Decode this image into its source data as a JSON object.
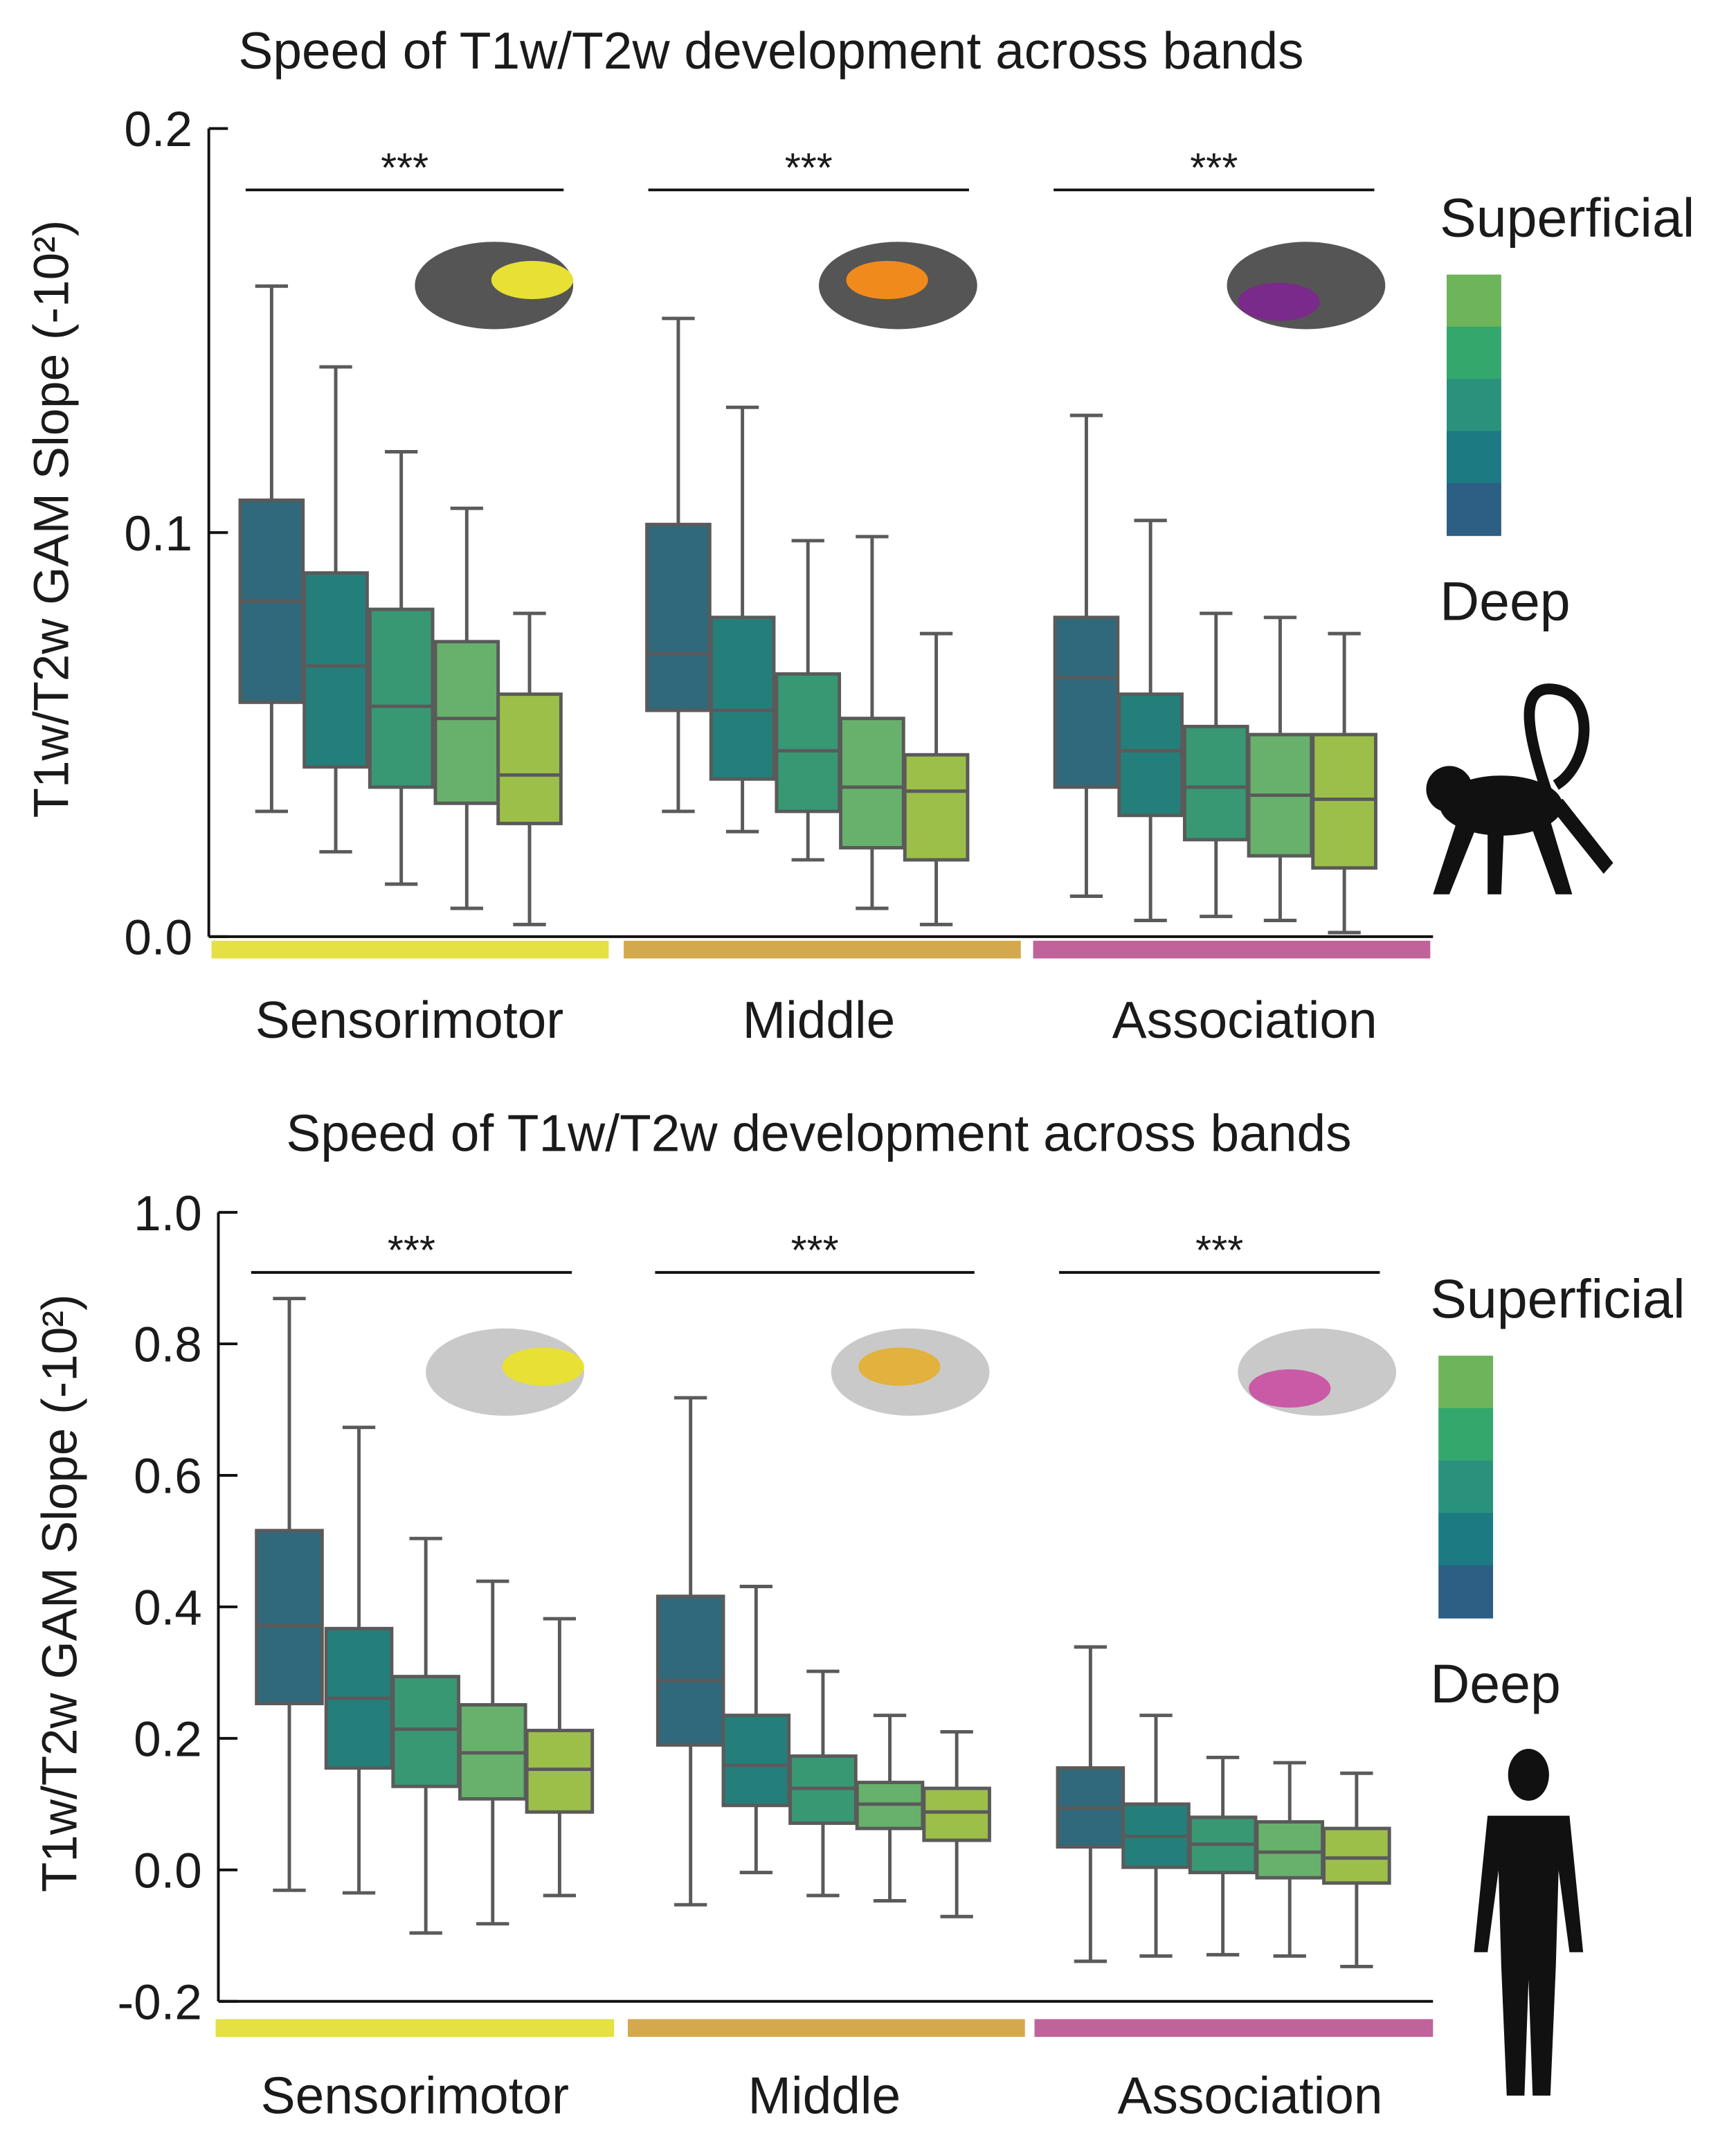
{
  "legend": {
    "top_label": "Superficial",
    "bottom_label": "Deep",
    "colors": [
      "#6db45a",
      "#34a86c",
      "#2a927c",
      "#1c7a82",
      "#2d5f84"
    ]
  },
  "box_colors": [
    "#30697b",
    "#247f7b",
    "#389874",
    "#68b16c",
    "#9cbf4a"
  ],
  "band_colors": {
    "Sensorimotor": "#e5e043",
    "Middle": "#d4a94e",
    "Association": "#c0639a"
  },
  "significance": "***",
  "chart_data": [
    {
      "type": "box",
      "title": "Speed of T1w/T2w development across bands",
      "ylabel": "T1w/T2w GAM Slope (-10²)",
      "ylim": [
        0,
        0.2
      ],
      "yticks": [
        "0.0",
        "0.1",
        "0.2"
      ],
      "species_icon": "monkey-icon",
      "categories": [
        "Sensorimotor",
        "Middle",
        "Association"
      ],
      "groups": [
        {
          "name": "Sensorimotor",
          "significance": "***",
          "boxes": [
            {
              "whisker_high": 0.161,
              "q3": 0.108,
              "median": 0.083,
              "q1": 0.058,
              "whisker_low": 0.031
            },
            {
              "whisker_high": 0.141,
              "q3": 0.09,
              "median": 0.067,
              "q1": 0.042,
              "whisker_low": 0.021
            },
            {
              "whisker_high": 0.12,
              "q3": 0.081,
              "median": 0.057,
              "q1": 0.037,
              "whisker_low": 0.013
            },
            {
              "whisker_high": 0.106,
              "q3": 0.073,
              "median": 0.054,
              "q1": 0.033,
              "whisker_low": 0.007
            },
            {
              "whisker_high": 0.08,
              "q3": 0.06,
              "median": 0.04,
              "q1": 0.028,
              "whisker_low": 0.003
            }
          ]
        },
        {
          "name": "Middle",
          "significance": "***",
          "boxes": [
            {
              "whisker_high": 0.153,
              "q3": 0.102,
              "median": 0.07,
              "q1": 0.056,
              "whisker_low": 0.031
            },
            {
              "whisker_high": 0.131,
              "q3": 0.079,
              "median": 0.056,
              "q1": 0.039,
              "whisker_low": 0.026
            },
            {
              "whisker_high": 0.098,
              "q3": 0.065,
              "median": 0.046,
              "q1": 0.031,
              "whisker_low": 0.019
            },
            {
              "whisker_high": 0.099,
              "q3": 0.054,
              "median": 0.037,
              "q1": 0.022,
              "whisker_low": 0.007
            },
            {
              "whisker_high": 0.075,
              "q3": 0.045,
              "median": 0.036,
              "q1": 0.019,
              "whisker_low": 0.003
            }
          ]
        },
        {
          "name": "Association",
          "significance": "***",
          "boxes": [
            {
              "whisker_high": 0.129,
              "q3": 0.079,
              "median": 0.064,
              "q1": 0.037,
              "whisker_low": 0.01
            },
            {
              "whisker_high": 0.103,
              "q3": 0.06,
              "median": 0.046,
              "q1": 0.03,
              "whisker_low": 0.004
            },
            {
              "whisker_high": 0.08,
              "q3": 0.052,
              "median": 0.037,
              "q1": 0.024,
              "whisker_low": 0.005
            },
            {
              "whisker_high": 0.079,
              "q3": 0.05,
              "median": 0.035,
              "q1": 0.02,
              "whisker_low": 0.004
            },
            {
              "whisker_high": 0.075,
              "q3": 0.05,
              "median": 0.034,
              "q1": 0.017,
              "whisker_low": 0.001
            }
          ]
        }
      ]
    },
    {
      "type": "box",
      "title": "Speed of T1w/T2w development across bands",
      "ylabel": "T1w/T2w GAM Slope (-10²)",
      "ylim": [
        -0.2,
        1.0
      ],
      "yticks": [
        "-0.2",
        "0.0",
        "0.2",
        "0.4",
        "0.6",
        "0.8",
        "1.0"
      ],
      "species_icon": "human-icon",
      "categories": [
        "Sensorimotor",
        "Middle",
        "Association"
      ],
      "groups": [
        {
          "name": "Sensorimotor",
          "significance": "***",
          "boxes": [
            {
              "whisker_high": 0.869,
              "q3": 0.516,
              "median": 0.371,
              "q1": 0.253,
              "whisker_low": -0.031
            },
            {
              "whisker_high": 0.673,
              "q3": 0.367,
              "median": 0.261,
              "q1": 0.155,
              "whisker_low": -0.035
            },
            {
              "whisker_high": 0.504,
              "q3": 0.294,
              "median": 0.214,
              "q1": 0.127,
              "whisker_low": -0.096
            },
            {
              "whisker_high": 0.439,
              "q3": 0.251,
              "median": 0.178,
              "q1": 0.108,
              "whisker_low": -0.082
            },
            {
              "whisker_high": 0.382,
              "q3": 0.212,
              "median": 0.153,
              "q1": 0.088,
              "whisker_low": -0.039
            }
          ]
        },
        {
          "name": "Middle",
          "significance": "***",
          "boxes": [
            {
              "whisker_high": 0.718,
              "q3": 0.416,
              "median": 0.288,
              "q1": 0.19,
              "whisker_low": -0.053
            },
            {
              "whisker_high": 0.431,
              "q3": 0.235,
              "median": 0.159,
              "q1": 0.098,
              "whisker_low": -0.004
            },
            {
              "whisker_high": 0.302,
              "q3": 0.173,
              "median": 0.124,
              "q1": 0.071,
              "whisker_low": -0.039
            },
            {
              "whisker_high": 0.235,
              "q3": 0.133,
              "median": 0.1,
              "q1": 0.063,
              "whisker_low": -0.047
            },
            {
              "whisker_high": 0.21,
              "q3": 0.124,
              "median": 0.088,
              "q1": 0.045,
              "whisker_low": -0.071
            }
          ]
        },
        {
          "name": "Association",
          "significance": "***",
          "boxes": [
            {
              "whisker_high": 0.339,
              "q3": 0.155,
              "median": 0.094,
              "q1": 0.035,
              "whisker_low": -0.139
            },
            {
              "whisker_high": 0.235,
              "q3": 0.1,
              "median": 0.051,
              "q1": 0.004,
              "whisker_low": -0.131
            },
            {
              "whisker_high": 0.171,
              "q3": 0.08,
              "median": 0.039,
              "q1": -0.004,
              "whisker_low": -0.129
            },
            {
              "whisker_high": 0.163,
              "q3": 0.073,
              "median": 0.027,
              "q1": -0.012,
              "whisker_low": -0.131
            },
            {
              "whisker_high": 0.147,
              "q3": 0.063,
              "median": 0.018,
              "q1": -0.02,
              "whisker_low": -0.147
            }
          ]
        }
      ]
    }
  ]
}
